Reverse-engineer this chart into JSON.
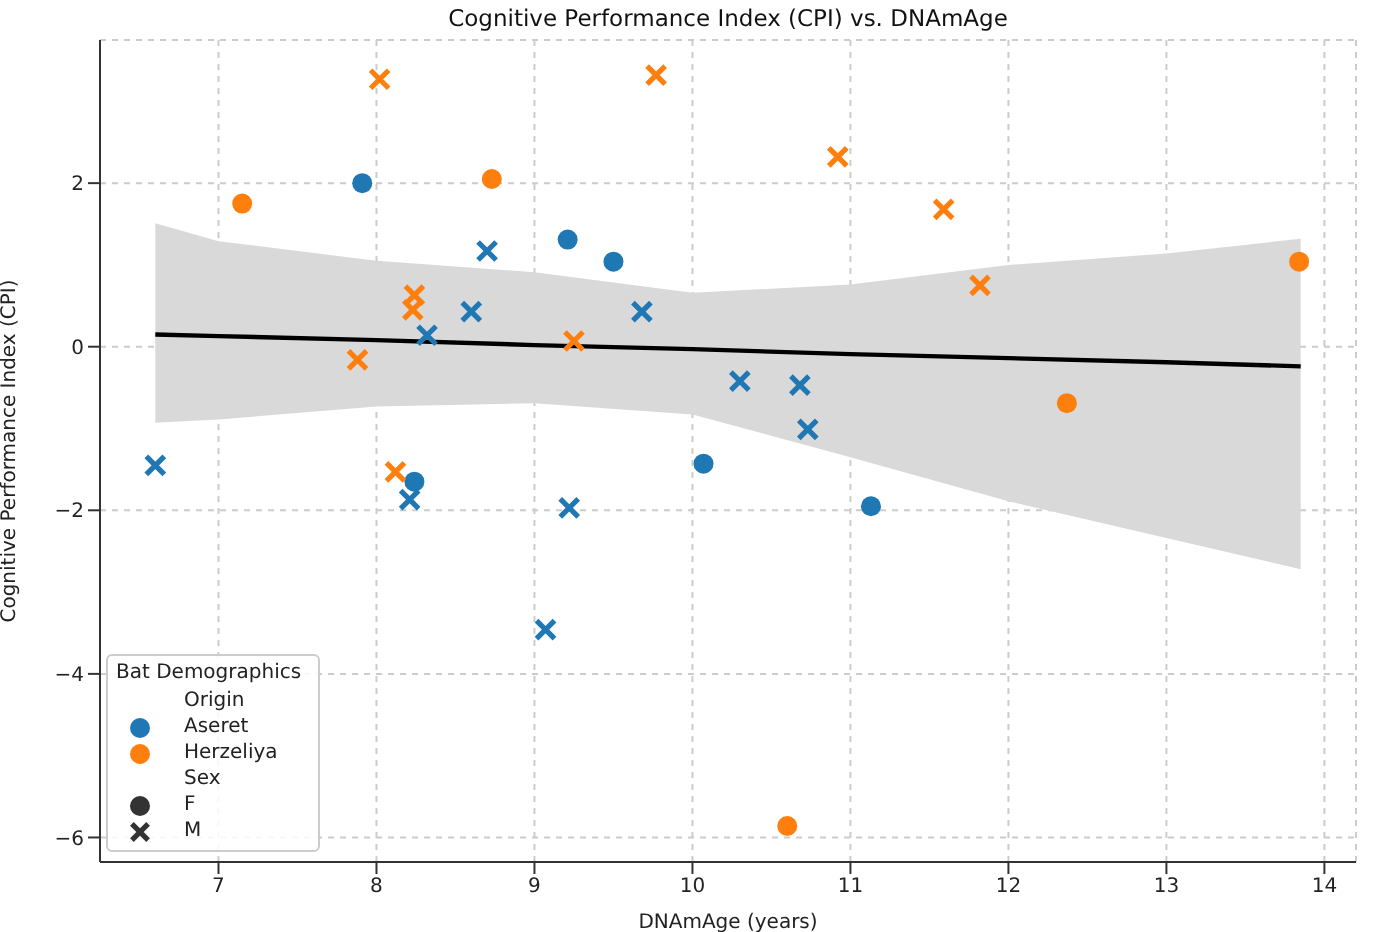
{
  "chart_data": {
    "type": "scatter",
    "title": "Cognitive Performance Index (CPI) vs. DNAmAge",
    "xlabel": "DNAmAge (years)",
    "ylabel": "Cognitive Performance Index (CPI)",
    "legend_title": "Bat Demographics",
    "annotations": [
      "Origin",
      "Sex",
      "F",
      "M"
    ],
    "xlim": [
      6.25,
      14.2
    ],
    "ylim": [
      -6.3,
      3.75
    ],
    "xticks": [
      7,
      8,
      9,
      10,
      11,
      12,
      13,
      14
    ],
    "yticks": [
      -6,
      -4,
      -2,
      0,
      2
    ],
    "grid": true,
    "legend": "bottom left",
    "series": [
      {
        "name": "Aseret",
        "color": "#1f77b4",
        "marker": "circle",
        "x": [
          7.91,
          9.5,
          9.21,
          8.24,
          10.07,
          11.13
        ],
        "values": [
          2.0,
          1.04,
          1.31,
          -1.65,
          -1.43,
          -1.95
        ]
      },
      {
        "color": "#1f77b4",
        "marker": "cross",
        "x": [
          6.6,
          8.7,
          8.6,
          8.32,
          9.68,
          8.21,
          9.22,
          9.07,
          10.3,
          10.68,
          10.73
        ],
        "values": [
          -1.45,
          1.17,
          0.43,
          0.14,
          0.43,
          -1.87,
          -1.97,
          -3.46,
          -0.42,
          -0.47,
          -1.01
        ]
      },
      {
        "name": "Herzeliya",
        "color": "#ff7f0e",
        "marker": "circle",
        "x": [
          7.15,
          8.73,
          12.37,
          13.84,
          10.6
        ],
        "values": [
          1.75,
          2.05,
          -0.69,
          1.04,
          -5.86
        ]
      },
      {
        "color": "#ff7f0e",
        "marker": "cross",
        "x": [
          8.02,
          9.77,
          7.88,
          8.24,
          8.23,
          9.25,
          8.12,
          10.92,
          11.59,
          11.82
        ],
        "values": [
          3.27,
          3.32,
          -0.16,
          0.63,
          0.45,
          0.07,
          -1.53,
          2.32,
          1.68,
          0.75
        ]
      },
      {
        "type": "line",
        "color": "#000000",
        "x": [
          6.6,
          7,
          8,
          9,
          10,
          11,
          12,
          13,
          13.85
        ],
        "values": [
          0.15,
          0.13,
          0.08,
          0.02,
          -0.03,
          -0.09,
          -0.14,
          -0.19,
          -0.24
        ],
        "lower": [
          -0.93,
          -0.89,
          -0.73,
          -0.69,
          -0.83,
          -1.35,
          -1.89,
          -2.34,
          -2.72
        ],
        "upper": [
          1.51,
          1.29,
          1.05,
          0.91,
          0.66,
          0.76,
          1.0,
          1.14,
          1.32
        ]
      }
    ]
  }
}
